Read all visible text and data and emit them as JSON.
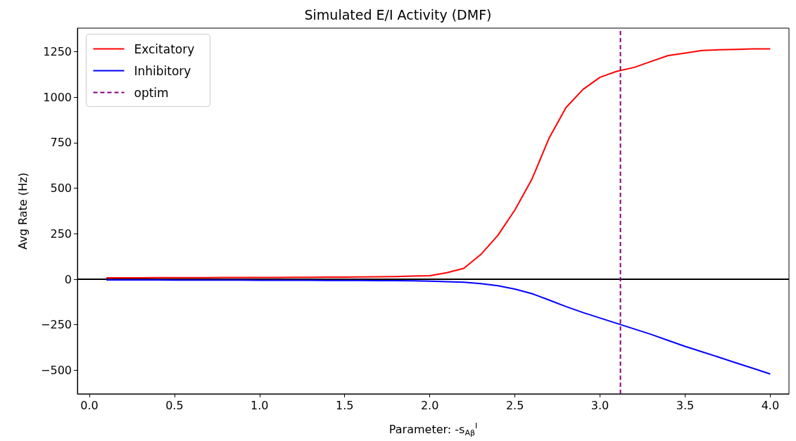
{
  "chart_data": {
    "type": "line",
    "title": "Simulated E/I Activity (DMF)",
    "xlabel": "Parameter: -s$_{Aβ}$$^{I}$",
    "ylabel": "Avg Rate (Hz)",
    "x": [
      0.1,
      0.2,
      0.3,
      0.4,
      0.5,
      0.6,
      0.7,
      0.8,
      0.9,
      1.0,
      1.1,
      1.2,
      1.3,
      1.4,
      1.5,
      1.6,
      1.7,
      1.8,
      1.9,
      2.0,
      2.1,
      2.2,
      2.3,
      2.4,
      2.5,
      2.6,
      2.7,
      2.8,
      2.9,
      3.0,
      3.1,
      3.2,
      3.3,
      3.4,
      3.5,
      3.6,
      3.7,
      3.8,
      3.9,
      4.0
    ],
    "series": [
      {
        "name": "Excitatory",
        "color": "#ff0000",
        "values": [
          8,
          8,
          8,
          9,
          9,
          9,
          9,
          10,
          10,
          10,
          10,
          11,
          11,
          12,
          12,
          13,
          14,
          15,
          17,
          19,
          36,
          60,
          136,
          241,
          381,
          550,
          774,
          943,
          1043,
          1110,
          1143,
          1164,
          1197,
          1229,
          1243,
          1257,
          1261,
          1263,
          1266,
          1266
        ]
      },
      {
        "name": "Inhibitory",
        "color": "#0000ff",
        "values": [
          -4,
          -4,
          -4,
          -4,
          -5,
          -5,
          -5,
          -5,
          -5,
          -6,
          -6,
          -6,
          -6,
          -7,
          -7,
          -7,
          -8,
          -8,
          -9,
          -11,
          -13,
          -16,
          -24,
          -36,
          -54,
          -79,
          -114,
          -150,
          -183,
          -213,
          -243,
          -273,
          -303,
          -336,
          -369,
          -399,
          -429,
          -460,
          -490,
          -521
        ]
      },
      {
        "name": "optim",
        "color": "#800080",
        "x": [
          3.12,
          3.12
        ],
        "values": [
          -630,
          1380
        ],
        "line_style": "dashed"
      }
    ],
    "ref_lines": [
      {
        "axis": "y",
        "value": 0,
        "color": "#000000",
        "line_style": "solid"
      }
    ],
    "xlim": [
      -0.07,
      4.11
    ],
    "ylim": [
      -630,
      1380
    ],
    "xticks": [
      {
        "value": 0,
        "label": "0.0"
      },
      {
        "value": 0.5,
        "label": "0.5"
      },
      {
        "value": 1,
        "label": "1.0"
      },
      {
        "value": 1.5,
        "label": "1.5"
      },
      {
        "value": 2,
        "label": "2.0"
      },
      {
        "value": 2.5,
        "label": "2.5"
      },
      {
        "value": 3,
        "label": "3.0"
      },
      {
        "value": 3.5,
        "label": "3.5"
      },
      {
        "value": 4,
        "label": "4.0"
      }
    ],
    "yticks": [
      {
        "value": -500,
        "label": "−500"
      },
      {
        "value": -250,
        "label": "−250"
      },
      0,
      250,
      500,
      750,
      1000,
      1250
    ],
    "legend": "top left",
    "grid": false,
    "marker": "none",
    "line_style": "solid"
  }
}
